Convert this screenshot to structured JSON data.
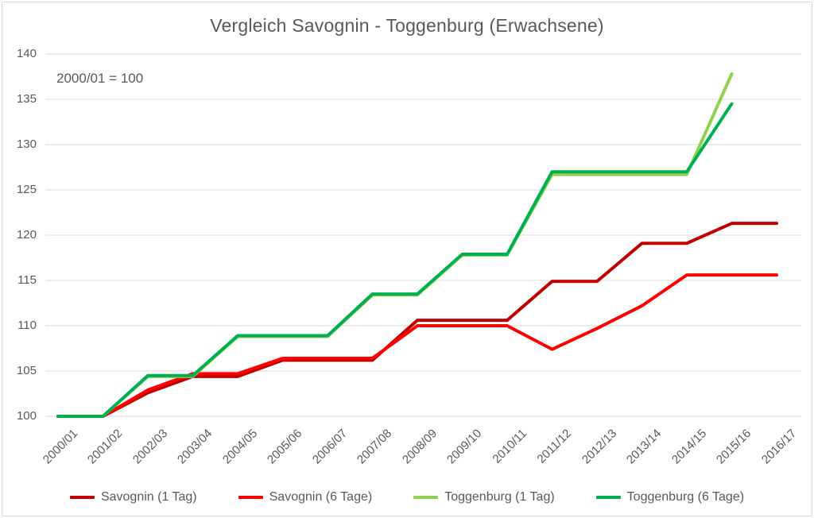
{
  "chart_data": {
    "type": "line",
    "title": "Vergleich Savognin - Toggenburg (Erwachsene)",
    "annotation": "2000/01 = 100",
    "categories": [
      "2000/01",
      "2001/02",
      "2002/03",
      "2003/04",
      "2004/05",
      "2005/06",
      "2006/07",
      "2007/08",
      "2008/09",
      "2009/10",
      "2010/11",
      "2011/12",
      "2012/13",
      "2013/14",
      "2014/15",
      "2015/16",
      "2016/17"
    ],
    "series": [
      {
        "name": "Savognin (1 Tag)",
        "color": "#C00000",
        "values": [
          100,
          100,
          102.6,
          104.4,
          104.4,
          106.2,
          106.2,
          106.2,
          110.6,
          110.6,
          110.6,
          114.9,
          114.9,
          119.1,
          119.1,
          121.3,
          121.3
        ]
      },
      {
        "name": "Savognin (6 Tage)",
        "color": "#FF0000",
        "values": [
          100,
          100,
          102.9,
          104.7,
          104.7,
          106.4,
          106.4,
          106.4,
          110.0,
          110.0,
          110.0,
          107.4,
          109.7,
          112.2,
          115.6,
          115.6,
          115.6
        ]
      },
      {
        "name": "Toggenburg (1 Tag)",
        "color": "#92D050",
        "values": [
          100,
          100,
          104.4,
          104.4,
          108.8,
          108.8,
          108.8,
          113.4,
          113.4,
          117.8,
          117.8,
          126.7,
          126.7,
          126.7,
          126.7,
          137.8,
          null
        ]
      },
      {
        "name": "Toggenburg (6 Tage)",
        "color": "#00B050",
        "values": [
          100,
          100,
          104.5,
          104.5,
          108.9,
          108.9,
          108.9,
          113.5,
          113.5,
          117.9,
          117.9,
          127.0,
          127.0,
          127.0,
          127.0,
          134.5,
          null
        ]
      }
    ],
    "y_axis": {
      "min": 100,
      "max": 140,
      "step": 5,
      "ticks": [
        "100",
        "105",
        "110",
        "115",
        "120",
        "125",
        "130",
        "135",
        "140"
      ]
    },
    "x_axis": {
      "label_rotation_deg": -45
    },
    "legend_position": "bottom",
    "grid": true
  },
  "colors": {
    "text": "#595959",
    "grid": "#D9D9D9",
    "border": "#D7D7D7",
    "background": "#FFFFFF"
  }
}
